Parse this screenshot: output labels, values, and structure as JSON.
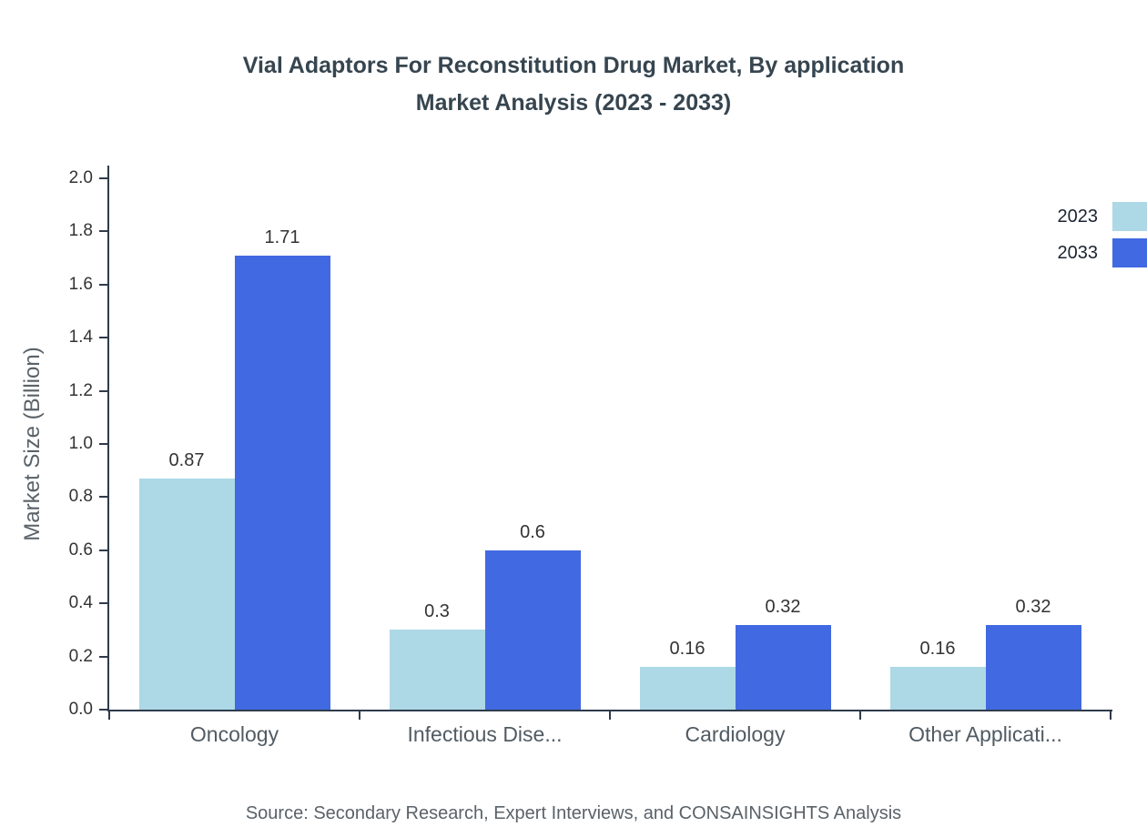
{
  "title": {
    "line1": "Vial Adaptors For Reconstitution Drug Market, By application",
    "line2": "Market Analysis (2023 - 2033)"
  },
  "chart_data": {
    "type": "bar",
    "title": "Vial Adaptors For Reconstitution Drug Market, By application Market Analysis (2023 - 2033)",
    "categories": [
      "Oncology",
      "Infectious Dise...",
      "Cardiology",
      "Other Applicati..."
    ],
    "series": [
      {
        "name": "2023",
        "color": "#add8e6",
        "values": [
          0.87,
          0.3,
          0.16,
          0.16
        ]
      },
      {
        "name": "2033",
        "color": "#4169e1",
        "values": [
          1.71,
          0.6,
          0.32,
          0.32
        ]
      }
    ],
    "xlabel": "",
    "ylabel": "Market Size (Billion)",
    "ylim": [
      0.0,
      2.0
    ],
    "ytick_step": 0.2,
    "grid": false,
    "legend_position": "top-right",
    "bar_label_format": "as-shown",
    "bar_labels": {
      "2023": [
        "0.87",
        "0.3",
        "0.16",
        "0.16"
      ],
      "2033": [
        "1.71",
        "0.6",
        "0.32",
        "0.32"
      ]
    },
    "axis_color": "#2f3b4c"
  },
  "footer": {
    "source": "Source: Secondary Research, Expert Interviews, and CONSAINSIGHTS Analysis"
  }
}
